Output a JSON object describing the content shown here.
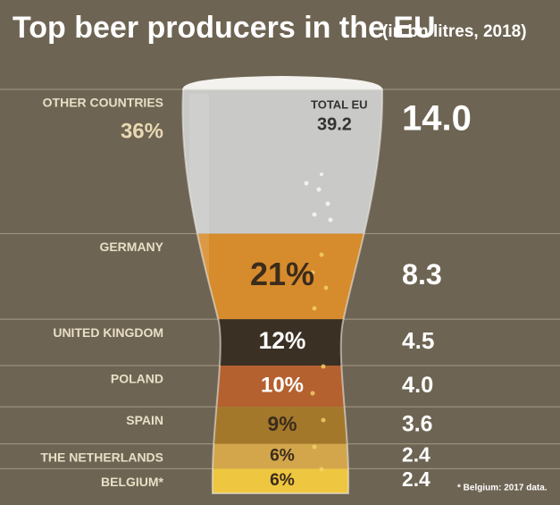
{
  "chart_data": {
    "type": "glass",
    "title": "Top beer producers in the EU",
    "subtitle": "(in bn litres, 2018)",
    "total_label": "TOTAL EU",
    "total": 39.2,
    "categories": [
      "OTHER COUNTRIES",
      "GERMANY",
      "UNITED KINGDOM",
      "POLAND",
      "SPAIN",
      "THE NETHERLANDS",
      "BELGIUM*"
    ],
    "values": [
      14.0,
      8.3,
      4.5,
      4.0,
      3.6,
      2.4,
      2.4
    ],
    "value_labels": [
      "14.0",
      "8.3",
      "4.5",
      "4.0",
      "3.6",
      "2.4",
      "2.4"
    ],
    "shares": [
      36,
      21,
      12,
      10,
      9,
      6,
      6
    ],
    "share_labels": [
      "36%",
      "21%",
      "12%",
      "10%",
      "9%",
      "6%",
      "6%"
    ],
    "colors": [
      "#c9c9c7",
      "#d68b2c",
      "#3b3024",
      "#b5612f",
      "#a4782b",
      "#d3a64b",
      "#efc63f"
    ],
    "footnote": "* Belgium: 2017 data."
  }
}
